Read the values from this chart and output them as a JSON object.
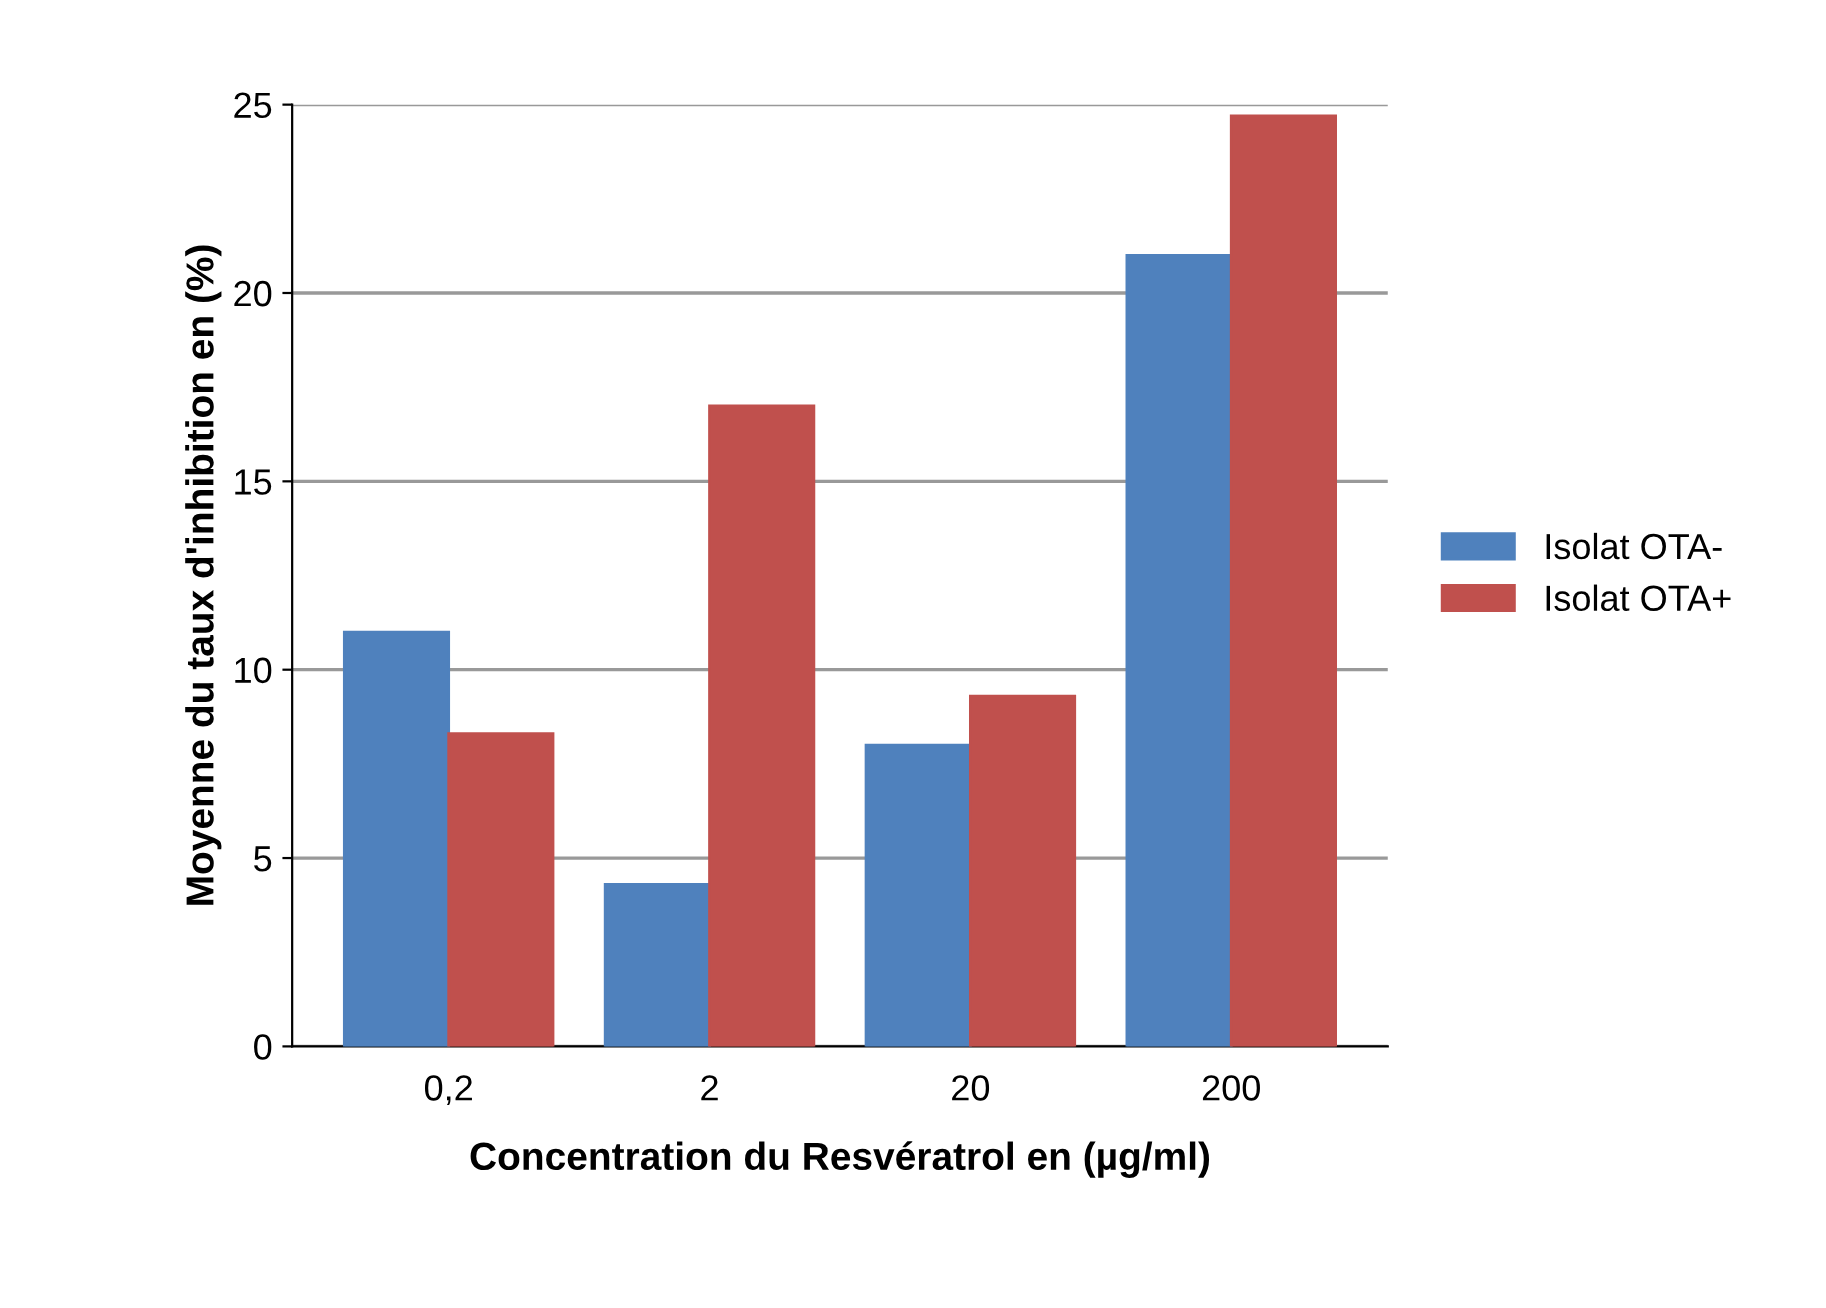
{
  "chart_data": {
    "type": "bar",
    "xlabel": "Concentration du Resvératrol en (µg/ml)",
    "ylabel": "Moyenne du taux d'inhibition en (%)",
    "categories": [
      "0,2",
      "2",
      "20",
      "200"
    ],
    "series": [
      {
        "name": "Isolat OTA-",
        "color": "#4f81bd",
        "values": [
          11,
          4.3,
          8,
          21
        ]
      },
      {
        "name": "Isolat OTA+",
        "color": "#c0504d",
        "values": [
          8.3,
          17,
          9.3,
          24.7
        ]
      }
    ],
    "ylim": [
      0,
      25
    ],
    "yticks": [
      0,
      5,
      10,
      15,
      20,
      25
    ],
    "grid": "y",
    "legend": "right"
  }
}
